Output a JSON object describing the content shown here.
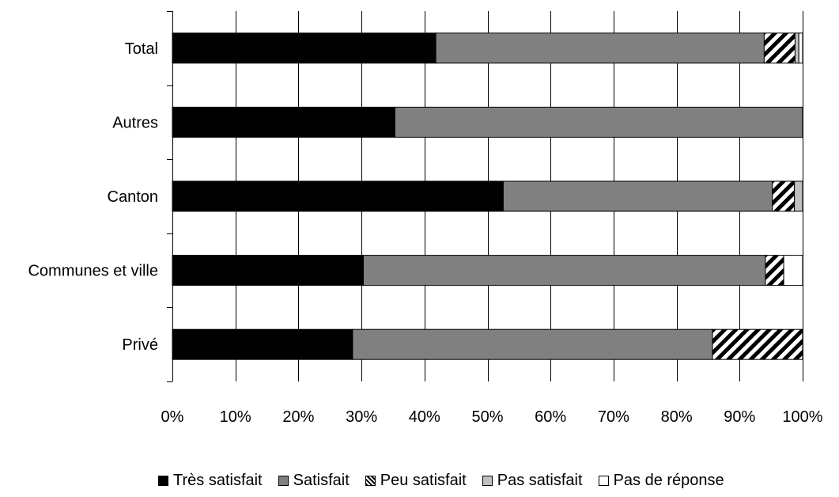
{
  "chart_data": {
    "type": "bar",
    "orientation": "horizontal",
    "stacked": "percent",
    "title": "",
    "xlabel": "",
    "ylabel": "",
    "xlim": [
      0,
      100
    ],
    "x_ticks": [
      "0%",
      "10%",
      "20%",
      "30%",
      "40%",
      "50%",
      "60%",
      "70%",
      "80%",
      "90%",
      "100%"
    ],
    "categories": [
      "Total",
      "Autres",
      "Canton",
      "Communes et ville",
      "Privé"
    ],
    "series": [
      {
        "name": "Très satisfait",
        "color": "#000000",
        "pattern": "solid",
        "values": [
          41.8,
          35.3,
          52.5,
          30.3,
          28.6
        ]
      },
      {
        "name": "Satisfait",
        "color": "#808080",
        "pattern": "solid",
        "values": [
          52.1,
          64.7,
          42.7,
          63.8,
          57.1
        ]
      },
      {
        "name": "Peu satisfait",
        "color": "#000000",
        "pattern": "diagonal-stripes",
        "values": [
          4.9,
          0,
          3.5,
          2.9,
          14.3
        ]
      },
      {
        "name": "Pas satisfait",
        "color": "#c0c0c0",
        "pattern": "solid",
        "values": [
          0.6,
          0,
          1.3,
          0,
          0
        ]
      },
      {
        "name": "Pas de réponse",
        "color": "#ffffff",
        "pattern": "solid",
        "values": [
          0.6,
          0,
          0,
          3.0,
          0
        ]
      }
    ],
    "grid": true,
    "legend_position": "bottom"
  }
}
